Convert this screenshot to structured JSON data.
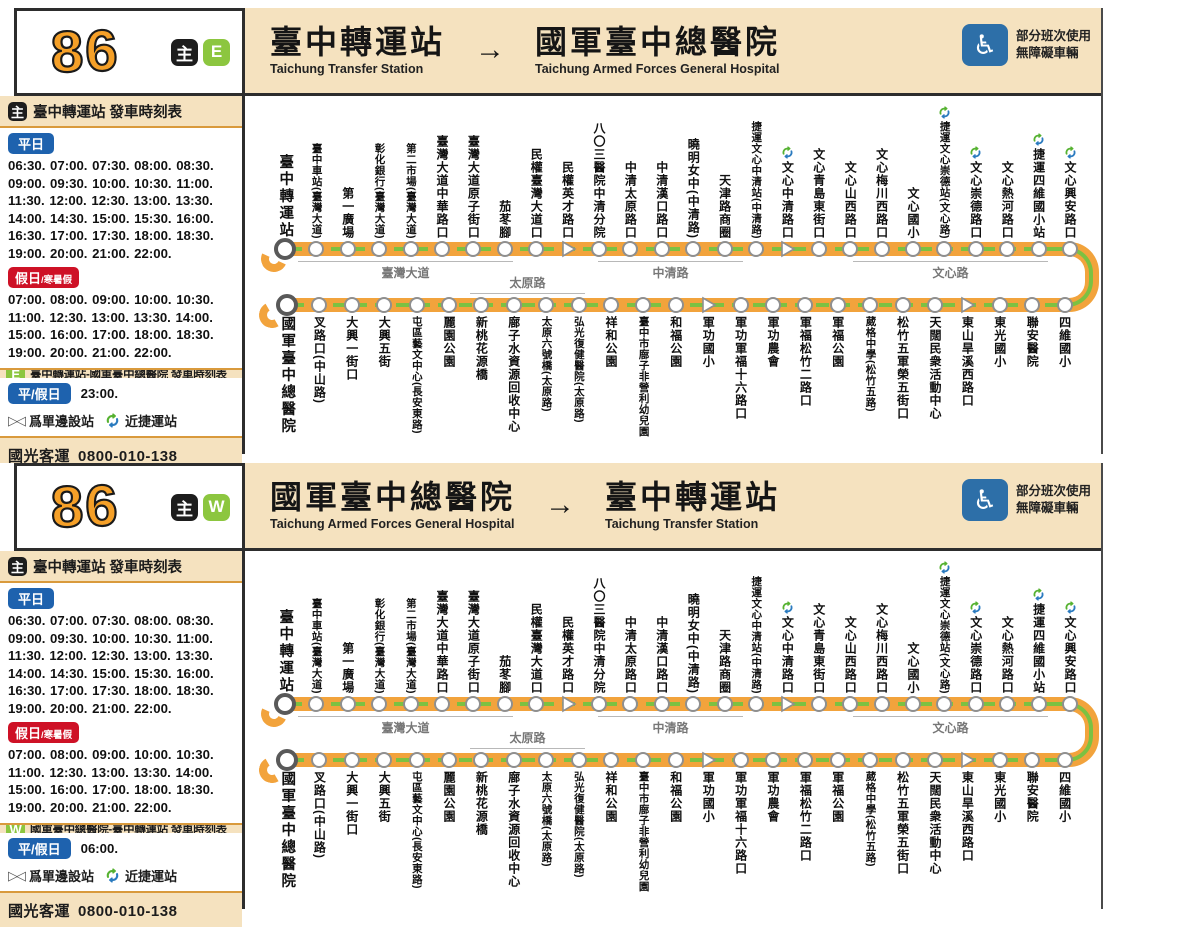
{
  "shared": {
    "route_number": "86",
    "badge_main": "主",
    "arrow": "→",
    "main_schedule_title": "臺中轉運站  發車時刻表",
    "weekday_label": "平日",
    "holiday_label": "假日",
    "holiday_label_sub": "/寒暑假",
    "allday_label": "平/假日",
    "weekday_times": "06:30. 07:00. 07:30. 08:00. 08:30. 09:00. 09:30. 10:00. 10:30. 11:00. 11:30. 12:00. 12:30. 13:00. 13:30. 14:00. 14:30. 15:00. 15:30. 16:00. 16:30. 17:00. 17:30. 18:00. 18:30. 19:00. 20:00. 21:00. 22:00.",
    "holiday_times": "07:00. 08:00. 09:00. 10:00. 10:30. 11:00. 12:30. 13:00. 13:30. 14:00. 15:00. 16:00. 17:00. 18:00. 18:30. 19:00. 20:00. 21:00. 22:00.",
    "legend_oneside_icon": "▷◁",
    "legend_oneside": "爲單邊設站",
    "legend_metro": "近捷運站",
    "operator": "國光客運",
    "phone": "0800-010-138",
    "wheelchair_icon": "♿",
    "wheelchair_note_1": "部分班次使用",
    "wheelchair_note_2": "無障礙車輛"
  },
  "panels": [
    {
      "dir_badge": "E",
      "from_zh": "臺中轉運站",
      "from_en": "Taichung Transfer Station",
      "to_zh": "國軍臺中總醫院",
      "to_en": "Taichung Armed Forces General Hospital",
      "extra_schedule_title": "臺中轉運站-國軍臺中總醫院 發車時刻表",
      "allday_times": "23:00."
    },
    {
      "dir_badge": "W",
      "from_zh": "國軍臺中總醫院",
      "from_en": "Taichung Armed Forces General Hospital",
      "to_zh": "臺中轉運站",
      "to_en": "Taichung Transfer Station",
      "extra_schedule_title": "國軍臺中總醫院-臺中轉運站 發車時刻表",
      "allday_times": "06:00."
    }
  ],
  "map": {
    "top_row": [
      {
        "name": "臺中轉運站",
        "marker": "terminal"
      },
      {
        "name": "臺中車站(臺灣大道)"
      },
      {
        "name": "第一廣場"
      },
      {
        "name": "彰化銀行(臺灣大道)"
      },
      {
        "name": "第二市場(臺灣大道)"
      },
      {
        "name": "臺灣大道中華路口"
      },
      {
        "name": "臺灣大道原子街口"
      },
      {
        "name": "茄苳腳"
      },
      {
        "name": "民權臺灣大道口"
      },
      {
        "name": "民權英才路口",
        "marker": "triangle"
      },
      {
        "name": "八〇三醫院中清分院"
      },
      {
        "name": "中清太原路口"
      },
      {
        "name": "中清漢口路口"
      },
      {
        "name": "曉明女中(中清路)"
      },
      {
        "name": "天津路商圈"
      },
      {
        "name": "捷運文心中清站(中清路)"
      },
      {
        "name": "文心中清路口",
        "marker": "triangle",
        "metro": true
      },
      {
        "name": "文心青島東街口"
      },
      {
        "name": "文心山西路口"
      },
      {
        "name": "文心梅川西路口"
      },
      {
        "name": "文心國小"
      },
      {
        "name": "捷運文心崇德站(文心路)",
        "metro": true
      },
      {
        "name": "文心崇德路口",
        "metro": true
      },
      {
        "name": "文心熱河路口"
      },
      {
        "name": "捷運四維國小站",
        "metro": true
      },
      {
        "name": "文心興安路口",
        "metro": true
      }
    ],
    "bottom_row": [
      {
        "name": "國軍臺中總醫院",
        "marker": "terminal"
      },
      {
        "name": "叉路口(中山路)"
      },
      {
        "name": "大興一街口"
      },
      {
        "name": "大興五街"
      },
      {
        "name": "屯區藝文中心(長安東路)"
      },
      {
        "name": "麗園公園"
      },
      {
        "name": "新桃花源橋"
      },
      {
        "name": "廍子水資源回收中心"
      },
      {
        "name": "太原六號橋(太原路)"
      },
      {
        "name": "弘光復健醫院(太原路)"
      },
      {
        "name": "祥和公園"
      },
      {
        "name": "臺中市廍子非營利幼兒園"
      },
      {
        "name": "和福公園"
      },
      {
        "name": "軍功國小",
        "marker": "triangle"
      },
      {
        "name": "軍功軍福十六路口"
      },
      {
        "name": "軍功農會"
      },
      {
        "name": "軍福松竹二路口"
      },
      {
        "name": "軍福公園"
      },
      {
        "name": "葳格中學(松竹五路)"
      },
      {
        "name": "松竹五軍榮五街口"
      },
      {
        "name": "天闊民衆活動中心"
      },
      {
        "name": "東山旱溪西路口",
        "marker": "triangle"
      },
      {
        "name": "東光國小"
      },
      {
        "name": "聯安醫院"
      },
      {
        "name": "四維國小"
      }
    ],
    "road_labels": [
      {
        "name": "臺灣大道",
        "row": "top"
      },
      {
        "name": "中清路",
        "row": "top"
      },
      {
        "name": "文心路",
        "row": "top"
      },
      {
        "name": "太原路",
        "row": "bottom"
      }
    ]
  },
  "colors": {
    "panel_beige": "#F5E2BF",
    "line_orange": "#F2A33C",
    "line_green": "#7CC142",
    "route_number_orange": "#F5A028",
    "badge_blue": "#1E62AE",
    "badge_red": "#CE1126",
    "badge_green": "#8CC63F",
    "badge_black": "#1D1D1D",
    "wheelchair_blue": "#2D6FA8",
    "metro_green": "#56B231",
    "metro_blue": "#2B7BBF"
  }
}
